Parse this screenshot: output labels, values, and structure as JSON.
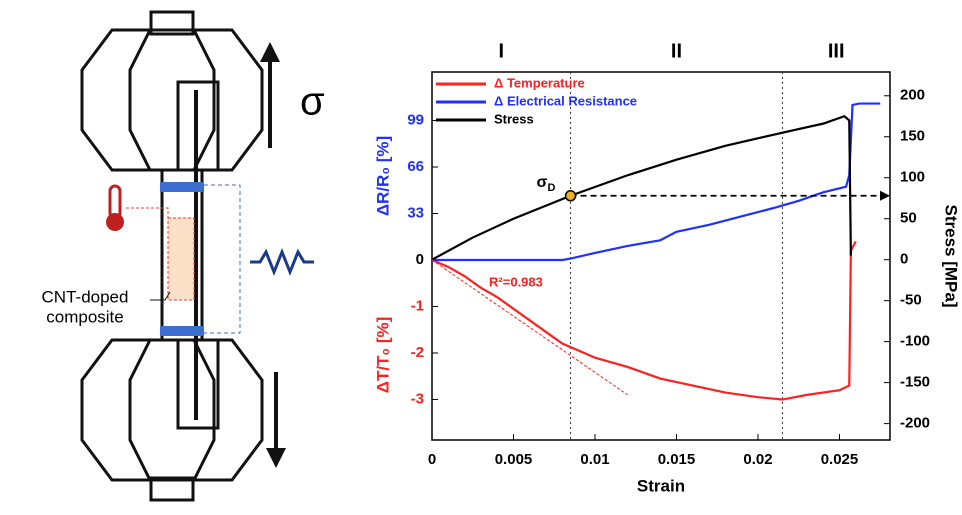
{
  "diagram": {
    "sigma": "σ",
    "label_lines": [
      "CNT-doped",
      "composite"
    ]
  },
  "chart_data": {
    "type": "line",
    "x_label": "Strain",
    "y_label": "ΔR/R₀ [%]",
    "y3_label": "ΔT/T₀ [%]",
    "y2_label": "Stress [MPa]",
    "xlim": [
      0,
      0.0281
    ],
    "xticks": [
      0,
      0.005,
      0.01,
      0.015,
      0.02,
      0.025
    ],
    "ylim": [
      -127.7,
      133.4
    ],
    "yticks": [
      0,
      33,
      66,
      99
    ],
    "y3lim": [
      -3.87,
      4.04
    ],
    "y3ticks": [
      -1,
      -2,
      -3
    ],
    "y2lim": [
      -220,
      229
    ],
    "y2ticks": [
      -200,
      -150,
      -100,
      -50,
      0,
      50,
      100,
      150,
      200
    ],
    "regions": [
      "I",
      "II",
      "III"
    ],
    "boundaries": [
      0.0085,
      0.0215
    ],
    "series": [
      {
        "name": "Δ Temperature",
        "color": "#ff2020",
        "axis": "y3",
        "x": [
          0,
          0.001,
          0.002,
          0.003,
          0.004,
          0.005,
          0.006,
          0.007,
          0.008,
          0.009,
          0.01,
          0.012,
          0.014,
          0.016,
          0.018,
          0.02,
          0.0215,
          0.023,
          0.025,
          0.0256,
          0.0257,
          0.026
        ],
        "values": [
          0,
          -0.15,
          -0.35,
          -0.6,
          -0.8,
          -1.05,
          -1.3,
          -1.55,
          -1.8,
          -1.95,
          -2.1,
          -2.3,
          -2.55,
          -2.7,
          -2.85,
          -2.95,
          -3.0,
          -2.9,
          -2.8,
          -2.7,
          0.2,
          0.4
        ]
      },
      {
        "name": "Δ Electrical Resistance",
        "color": "#2030ff",
        "axis": "y",
        "x": [
          0,
          0.008,
          0.0085,
          0.01,
          0.012,
          0.014,
          0.015,
          0.017,
          0.019,
          0.021,
          0.0225,
          0.024,
          0.0254,
          0.0256,
          0.0258,
          0.0262,
          0.0275
        ],
        "values": [
          0,
          0,
          1,
          5,
          10,
          14,
          20,
          25,
          31,
          37,
          42,
          48,
          52,
          60,
          110,
          111,
          111
        ]
      },
      {
        "name": "Stress",
        "color": "#000000",
        "axis": "y2",
        "x": [
          0,
          0.0025,
          0.005,
          0.0085,
          0.012,
          0.015,
          0.018,
          0.0215,
          0.024,
          0.0253,
          0.0256,
          0.0257
        ],
        "values": [
          0,
          27,
          50,
          78,
          103,
          122,
          139,
          155,
          166,
          175,
          170,
          5
        ]
      }
    ],
    "fit_line": {
      "label": "R²=0.983",
      "x": [
        0,
        0.012
      ],
      "values": [
        0,
        -2.9
      ]
    },
    "yield_point": {
      "symbol": "σ",
      "sub": "D",
      "x": 0.0085,
      "value": 78
    }
  }
}
